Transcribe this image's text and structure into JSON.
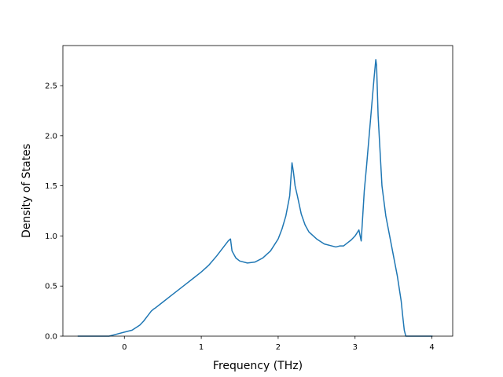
{
  "chart_data": {
    "type": "line",
    "xlabel": "Frequency (THz)",
    "ylabel": "Density of States",
    "xlim": [
      -0.8,
      4.27
    ],
    "ylim": [
      0,
      2.9
    ],
    "xticks": [
      0,
      1,
      2,
      3,
      4
    ],
    "yticks": [
      0.0,
      0.5,
      1.0,
      1.5,
      2.0,
      2.5
    ],
    "xtick_labels": [
      "0",
      "1",
      "2",
      "3",
      "4"
    ],
    "ytick_labels": [
      "0.0",
      "0.5",
      "1.0",
      "1.5",
      "2.0",
      "2.5"
    ],
    "grid": false,
    "series": [
      {
        "color": "#1f77b4",
        "x": [
          -0.6,
          -0.5,
          -0.4,
          -0.3,
          -0.2,
          -0.15,
          -0.1,
          0.0,
          0.1,
          0.2,
          0.25,
          0.3,
          0.35,
          0.38,
          0.4,
          0.5,
          0.6,
          0.7,
          0.8,
          0.9,
          1.0,
          1.1,
          1.2,
          1.3,
          1.35,
          1.38,
          1.4,
          1.45,
          1.5,
          1.6,
          1.7,
          1.8,
          1.9,
          2.0,
          2.05,
          2.1,
          2.15,
          2.18,
          2.2,
          2.22,
          2.25,
          2.3,
          2.35,
          2.4,
          2.5,
          2.6,
          2.7,
          2.75,
          2.8,
          2.85,
          2.9,
          2.95,
          3.0,
          3.05,
          3.08,
          3.1,
          3.12,
          3.15,
          3.2,
          3.25,
          3.27,
          3.28,
          3.3,
          3.35,
          3.4,
          3.5,
          3.55,
          3.6,
          3.62,
          3.64,
          3.66,
          3.7,
          3.8,
          3.9,
          4.0
        ],
        "y": [
          0.0,
          0.0,
          0.0,
          0.0,
          0.0,
          0.01,
          0.02,
          0.04,
          0.06,
          0.11,
          0.15,
          0.2,
          0.25,
          0.27,
          0.28,
          0.34,
          0.4,
          0.46,
          0.52,
          0.58,
          0.64,
          0.71,
          0.8,
          0.9,
          0.95,
          0.97,
          0.85,
          0.78,
          0.75,
          0.73,
          0.74,
          0.78,
          0.85,
          0.97,
          1.07,
          1.2,
          1.4,
          1.73,
          1.63,
          1.5,
          1.4,
          1.22,
          1.11,
          1.04,
          0.97,
          0.92,
          0.9,
          0.89,
          0.9,
          0.9,
          0.93,
          0.96,
          1.0,
          1.06,
          0.95,
          1.2,
          1.45,
          1.7,
          2.15,
          2.6,
          2.76,
          2.7,
          2.2,
          1.5,
          1.2,
          0.8,
          0.6,
          0.35,
          0.2,
          0.06,
          0.0,
          0.0,
          0.0,
          0.0,
          0.0
        ]
      }
    ]
  }
}
